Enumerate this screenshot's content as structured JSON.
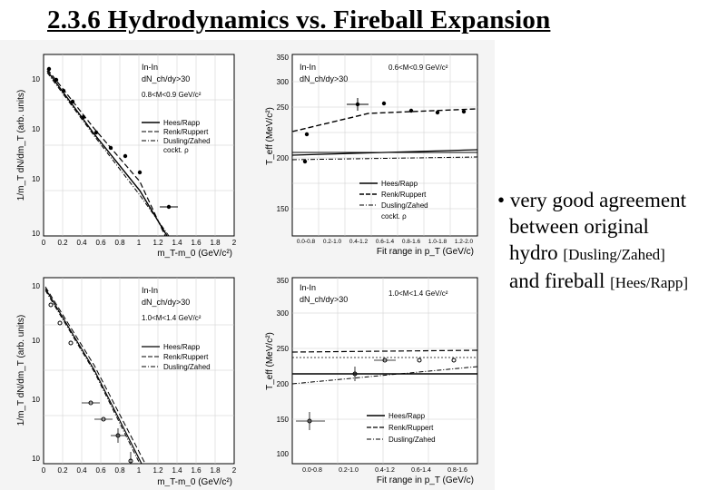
{
  "slide": {
    "title": "2.3.6  Hydrodynamics vs. Fireball Expansion"
  },
  "bullet": {
    "marker": "•",
    "line1": "very good agreement",
    "line2": "between original",
    "line3_main": "hydro ",
    "line3_ref": "[Dusling/Zahed]",
    "line4_main": "and fireball ",
    "line4_ref": "[Hees/Rapp]"
  },
  "panels": [
    {
      "id": "mt-spectrum-low-mass",
      "system": "In-In",
      "cut": "dN_ch/dy>30",
      "mass_range": "0.8<M<0.9 GeV/c²",
      "ylabel": "1/m_T dN/dm_T (arb. units)",
      "xlabel": "m_T-m_0 (GeV/c²)",
      "xticks": [
        "0",
        "0.2",
        "0.4",
        "0.6",
        "0.8",
        "1",
        "1.2",
        "1.4",
        "1.6",
        "1.8",
        "2"
      ],
      "yticks": [
        "10",
        "10",
        "10",
        "10"
      ],
      "legend": [
        "Hees/Rapp",
        "Renk/Ruppert",
        "Dusling/Zahed",
        "cockt. ρ"
      ]
    },
    {
      "id": "teff-low-mass",
      "system": "In-In",
      "cut": "dN_ch/dy>30",
      "mass_range": "0.6<M<0.9 GeV/c²",
      "ylabel": "T_eff (MeV/c²)",
      "xlabel": "Fit range in p_T (GeV/c)",
      "yticks": [
        "150",
        "200",
        "250",
        "300",
        "350"
      ],
      "xticks": [
        "0.0-0.8",
        "0.2-1.0",
        "0.4-1.2",
        "0.6-1.4",
        "0.8-1.6",
        "1.0-1.8",
        "1.2-2.0"
      ],
      "legend": [
        "Hees/Rapp",
        "Renk/Ruppert",
        "Dusling/Zahed",
        "cockt. ρ"
      ]
    },
    {
      "id": "mt-spectrum-high-mass",
      "system": "In-In",
      "cut": "dN_ch/dy>30",
      "mass_range": "1.0<M<1.4 GeV/c²",
      "ylabel": "1/m_T dN/dm_T (arb. units)",
      "xlabel": "m_T-m_0 (GeV/c²)",
      "xticks": [
        "0",
        "0.2",
        "0.4",
        "0.6",
        "0.8",
        "1",
        "1.2",
        "1.4",
        "1.6",
        "1.8",
        "2"
      ],
      "yticks": [
        "10",
        "10",
        "10",
        "10"
      ],
      "legend": [
        "Hees/Rapp",
        "Renk/Ruppert",
        "Dusling/Zahed"
      ]
    },
    {
      "id": "teff-high-mass",
      "system": "In-In",
      "cut": "dN_ch/dy>30",
      "mass_range": "1.0<M<1.4 GeV/c²",
      "ylabel": "T_eff (MeV/c²)",
      "xlabel": "Fit range in p_T (GeV/c)",
      "yticks": [
        "100",
        "150",
        "200",
        "250",
        "300",
        "350"
      ],
      "xticks": [
        "0.0-0.8",
        "0.2-1.0",
        "0.4-1.2",
        "0.6-1.4",
        "0.8-1.6"
      ],
      "legend": [
        "Hees/Rapp",
        "Renk/Ruppert",
        "Dusling/Zahed"
      ]
    }
  ]
}
